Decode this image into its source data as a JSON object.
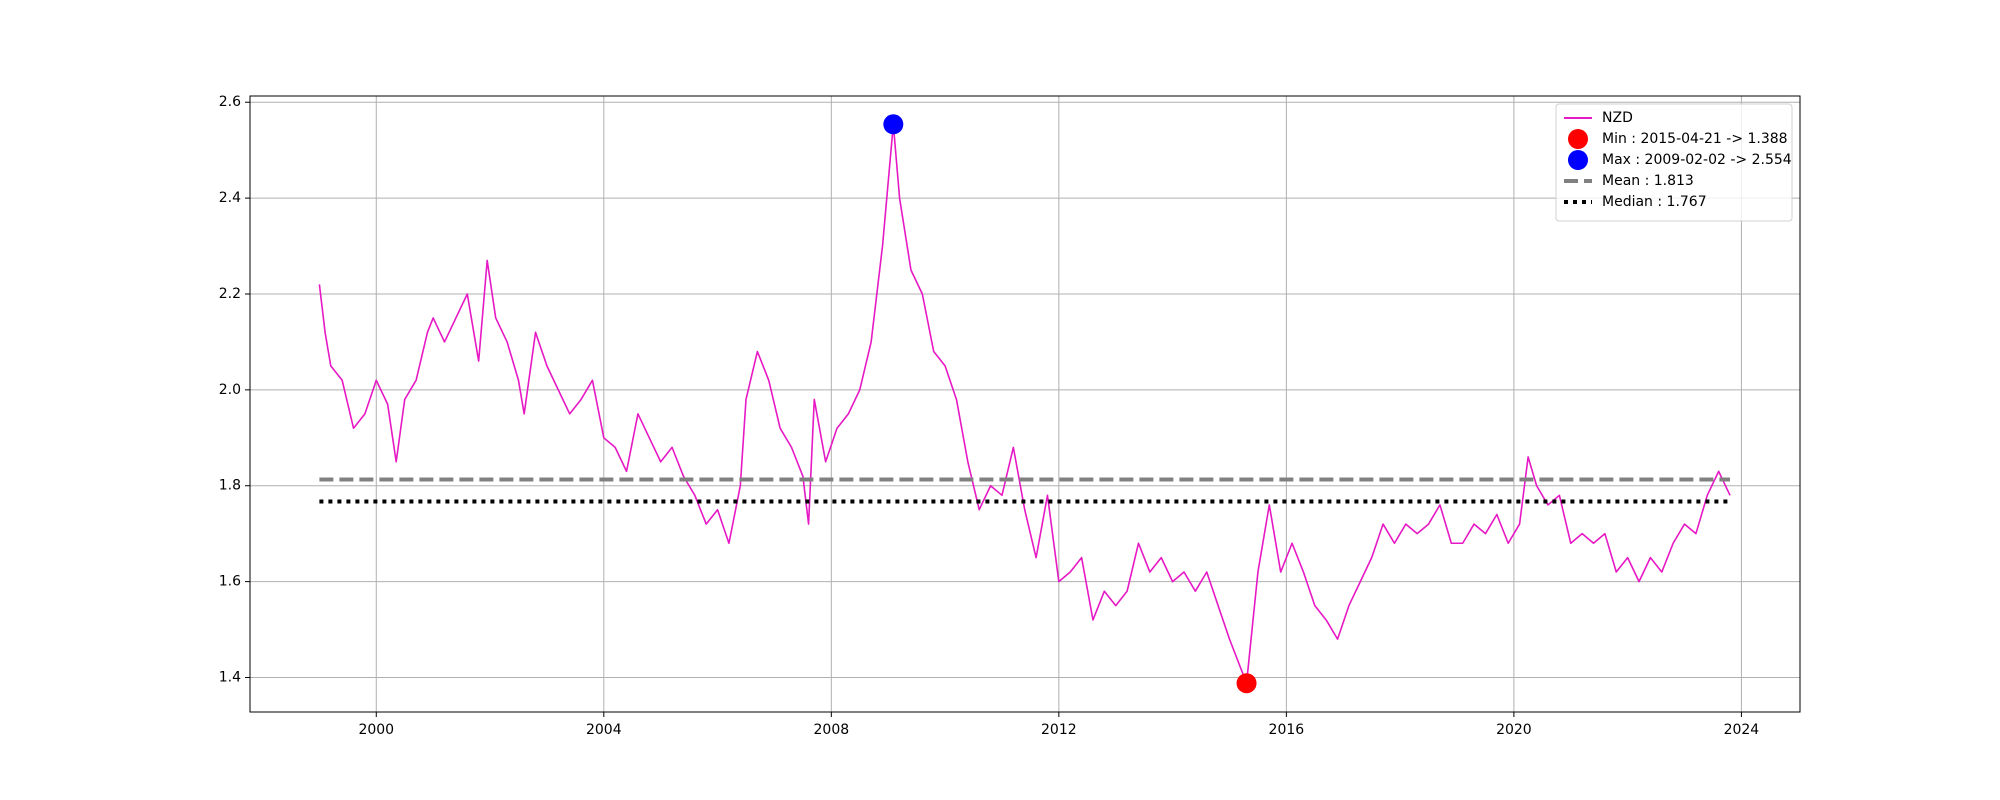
{
  "chart_data": {
    "type": "line",
    "series": [
      {
        "name": "NZD",
        "color": "#e619c5",
        "x": [
          1999.0,
          1999.1,
          1999.2,
          1999.4,
          1999.6,
          1999.8,
          2000.0,
          2000.2,
          2000.35,
          2000.5,
          2000.7,
          2000.9,
          2001.0,
          2001.2,
          2001.4,
          2001.6,
          2001.8,
          2001.95,
          2002.1,
          2002.3,
          2002.5,
          2002.6,
          2002.8,
          2003.0,
          2003.2,
          2003.4,
          2003.6,
          2003.8,
          2004.0,
          2004.2,
          2004.4,
          2004.6,
          2004.8,
          2005.0,
          2005.2,
          2005.4,
          2005.6,
          2005.8,
          2006.0,
          2006.2,
          2006.4,
          2006.5,
          2006.7,
          2006.9,
          2007.1,
          2007.3,
          2007.5,
          2007.6,
          2007.7,
          2007.9,
          2008.1,
          2008.3,
          2008.5,
          2008.7,
          2008.9,
          2009.09,
          2009.2,
          2009.4,
          2009.6,
          2009.8,
          2010.0,
          2010.2,
          2010.4,
          2010.6,
          2010.8,
          2011.0,
          2011.2,
          2011.4,
          2011.6,
          2011.8,
          2012.0,
          2012.2,
          2012.4,
          2012.6,
          2012.8,
          2013.0,
          2013.2,
          2013.4,
          2013.6,
          2013.8,
          2014.0,
          2014.2,
          2014.4,
          2014.6,
          2014.8,
          2015.0,
          2015.3,
          2015.5,
          2015.7,
          2015.9,
          2016.1,
          2016.3,
          2016.5,
          2016.7,
          2016.9,
          2017.1,
          2017.3,
          2017.5,
          2017.7,
          2017.9,
          2018.1,
          2018.3,
          2018.5,
          2018.7,
          2018.9,
          2019.1,
          2019.3,
          2019.5,
          2019.7,
          2019.9,
          2020.1,
          2020.25,
          2020.4,
          2020.6,
          2020.8,
          2021.0,
          2021.2,
          2021.4,
          2021.6,
          2021.8,
          2022.0,
          2022.2,
          2022.4,
          2022.6,
          2022.8,
          2023.0,
          2023.2,
          2023.4,
          2023.6,
          2023.8
        ],
        "values": [
          2.22,
          2.12,
          2.05,
          2.02,
          1.92,
          1.95,
          2.02,
          1.97,
          1.85,
          1.98,
          2.02,
          2.12,
          2.15,
          2.1,
          2.15,
          2.2,
          2.06,
          2.27,
          2.15,
          2.1,
          2.02,
          1.95,
          2.12,
          2.05,
          2.0,
          1.95,
          1.98,
          2.02,
          1.9,
          1.88,
          1.83,
          1.95,
          1.9,
          1.85,
          1.88,
          1.82,
          1.78,
          1.72,
          1.75,
          1.68,
          1.8,
          1.98,
          2.08,
          2.02,
          1.92,
          1.88,
          1.82,
          1.72,
          1.98,
          1.85,
          1.92,
          1.95,
          2.0,
          2.1,
          2.3,
          2.554,
          2.4,
          2.25,
          2.2,
          2.08,
          2.05,
          1.98,
          1.85,
          1.75,
          1.8,
          1.78,
          1.88,
          1.75,
          1.65,
          1.78,
          1.6,
          1.62,
          1.65,
          1.52,
          1.58,
          1.55,
          1.58,
          1.68,
          1.62,
          1.65,
          1.6,
          1.62,
          1.58,
          1.62,
          1.55,
          1.48,
          1.388,
          1.62,
          1.76,
          1.62,
          1.68,
          1.62,
          1.55,
          1.52,
          1.48,
          1.55,
          1.6,
          1.65,
          1.72,
          1.68,
          1.72,
          1.7,
          1.72,
          1.76,
          1.68,
          1.68,
          1.72,
          1.7,
          1.74,
          1.68,
          1.72,
          1.86,
          1.8,
          1.76,
          1.78,
          1.68,
          1.7,
          1.68,
          1.7,
          1.62,
          1.65,
          1.6,
          1.65,
          1.62,
          1.68,
          1.72,
          1.7,
          1.78,
          1.83,
          1.78
        ]
      }
    ],
    "markers": [
      {
        "name": "Min : 2015-04-21 -> 1.388",
        "color": "#ff0000",
        "x": 2015.3,
        "value": 1.388
      },
      {
        "name": "Max : 2009-02-02 -> 2.554",
        "color": "#0000ff",
        "x": 2009.09,
        "value": 2.554
      }
    ],
    "hlines": [
      {
        "name": "Mean : 1.813",
        "value": 1.813,
        "color": "#808080",
        "style": "dashed"
      },
      {
        "name": "Median : 1.767",
        "value": 1.767,
        "color": "#000000",
        "style": "dotted"
      }
    ],
    "xlim": [
      1997.78,
      2025.03
    ],
    "xticks": [
      2000,
      2004,
      2008,
      2012,
      2016,
      2020,
      2024
    ],
    "ylim": [
      1.328,
      2.613
    ],
    "yticks": [
      {
        "value": 1.4,
        "label": "1.4"
      },
      {
        "value": 1.6,
        "label": "1.6"
      },
      {
        "value": 1.8,
        "label": "1.8"
      },
      {
        "value": 2.0,
        "label": "2.0"
      },
      {
        "value": 2.2,
        "label": "2.2"
      },
      {
        "value": 2.4,
        "label": "2.4"
      },
      {
        "value": 2.6,
        "label": "2.6"
      }
    ],
    "grid": true,
    "legend": "upper right"
  }
}
